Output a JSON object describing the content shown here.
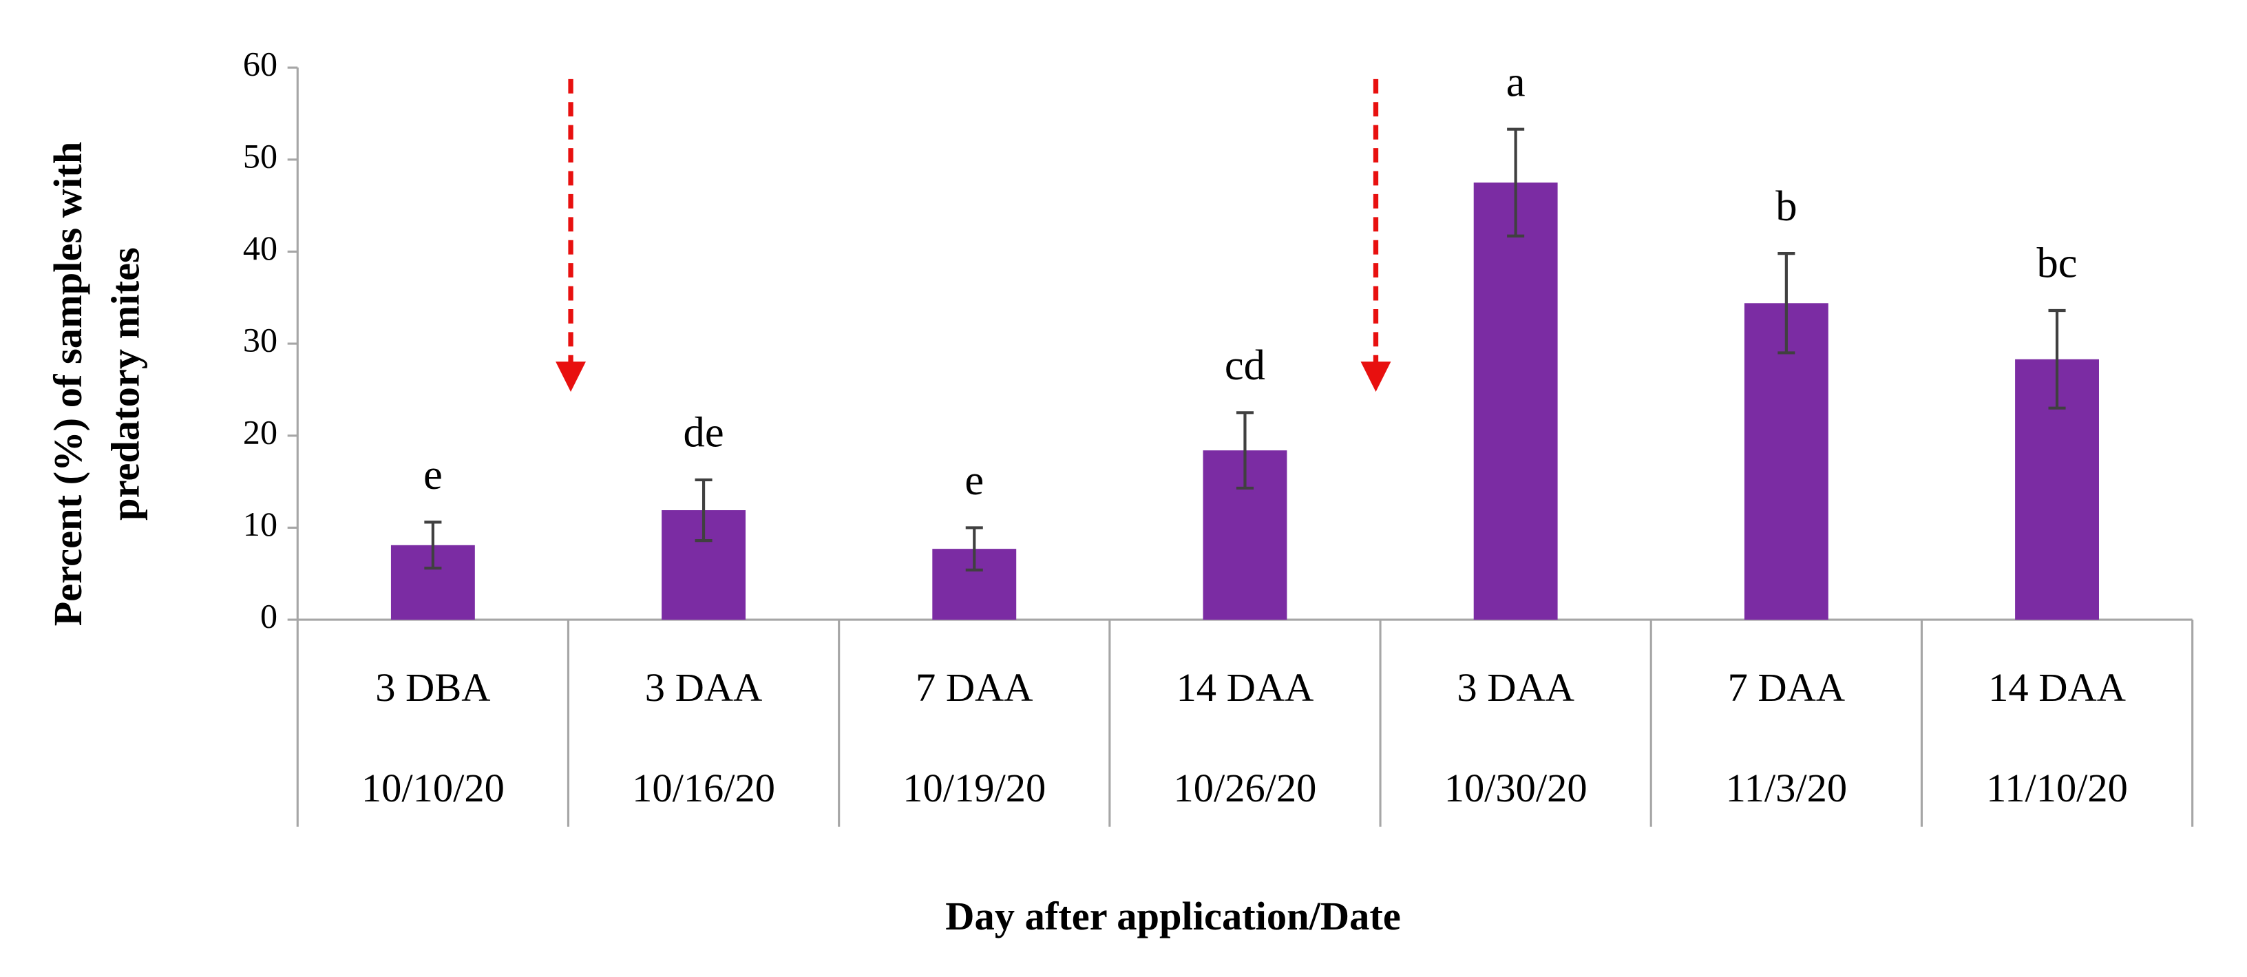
{
  "chart_data": {
    "type": "bar",
    "xlabel": "Day after application/Date",
    "ylabel": [
      "Percent (%) of samples with",
      "predatory mites"
    ],
    "categories": [
      "3 DBA",
      "3 DAA",
      "7 DAA",
      "14 DAA",
      "3 DAA",
      "7 DAA",
      "14 DAA"
    ],
    "dates": [
      "10/10/20",
      "10/16/20",
      "10/19/20",
      "10/26/20",
      "10/30/20",
      "11/3/20",
      "11/10/20"
    ],
    "values": [
      8.1,
      11.9,
      7.7,
      18.4,
      47.5,
      34.4,
      28.3
    ],
    "errors": [
      2.5,
      3.3,
      2.3,
      4.1,
      5.8,
      5.4,
      5.3
    ],
    "letters": [
      "e",
      "de",
      "e",
      "cd",
      "a",
      "b",
      "bc"
    ],
    "color": "#7b2ca3",
    "ylim": [
      0,
      60
    ],
    "yticks": [
      0,
      10,
      20,
      30,
      40,
      50,
      60
    ]
  }
}
